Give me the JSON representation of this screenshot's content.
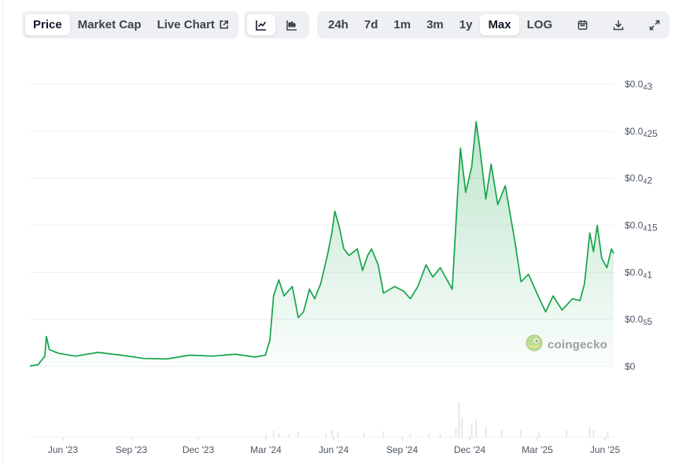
{
  "toolbar": {
    "view_tabs": [
      "Price",
      "Market Cap",
      "Live Chart"
    ],
    "active_view": "Price",
    "chart_modes": [
      "line-chart-icon",
      "candlestick-icon"
    ],
    "active_mode": "line-chart-icon",
    "ranges": [
      "24h",
      "7d",
      "1m",
      "3m",
      "1y",
      "Max",
      "LOG"
    ],
    "active_range": "Max",
    "tools": [
      "calendar-icon",
      "download-icon",
      "fullscreen-icon"
    ]
  },
  "watermark": {
    "text": "coingecko",
    "logo": "coingecko-gecko-logo"
  },
  "colors": {
    "line": "#16a34a",
    "fill_top": "#16a34a",
    "volume": "#e5e7eb",
    "grid": "#eef0f3",
    "active_tab_bg": "#ffffff",
    "toolbar_bg": "#eef0f3"
  },
  "chart_data": {
    "type": "area",
    "y_ticks": [
      {
        "value": 0,
        "label": "$0"
      },
      {
        "value": 5e-06,
        "label": "$0.0₅5"
      },
      {
        "value": 1e-05,
        "label": "$0.0₄1"
      },
      {
        "value": 1.5e-05,
        "label": "$0.0₄15"
      },
      {
        "value": 2e-05,
        "label": "$0.0₄2"
      },
      {
        "value": 2.5e-05,
        "label": "$0.0₄25"
      },
      {
        "value": 3e-05,
        "label": "$0.0₄3"
      }
    ],
    "ylim": [
      0,
      3e-05
    ],
    "x_ticks": [
      "Jun '23",
      "Sep '23",
      "Dec '23",
      "Mar '24",
      "Jun '24",
      "Sep '24",
      "Dec '24",
      "Mar '25",
      "Jun '25"
    ],
    "x_range": [
      "2023-04",
      "2025-06"
    ],
    "grid": true,
    "series": [
      {
        "values": [
          [
            "2023-04-20",
            5e-08
          ],
          [
            "2023-05-01",
            2e-07
          ],
          [
            "2023-05-10",
            1.1e-06
          ],
          [
            "2023-05-12",
            3.2e-06
          ],
          [
            "2023-05-16",
            1.8e-06
          ],
          [
            "2023-05-28",
            1.4e-06
          ],
          [
            "2023-06-20",
            1.1e-06
          ],
          [
            "2023-07-20",
            1.5e-06
          ],
          [
            "2023-08-20",
            1.2e-06
          ],
          [
            "2023-09-20",
            8.5e-07
          ],
          [
            "2023-10-20",
            8e-07
          ],
          [
            "2023-11-20",
            1.2e-06
          ],
          [
            "2023-12-20",
            1.1e-06
          ],
          [
            "2024-01-20",
            1.3e-06
          ],
          [
            "2024-02-15",
            1e-06
          ],
          [
            "2024-02-29",
            1.2e-06
          ],
          [
            "2024-03-06",
            2.8e-06
          ],
          [
            "2024-03-11",
            7.5e-06
          ],
          [
            "2024-03-18",
            9.2e-06
          ],
          [
            "2024-03-25",
            7.5e-06
          ],
          [
            "2024-04-05",
            8.5e-06
          ],
          [
            "2024-04-13",
            5.2e-06
          ],
          [
            "2024-04-20",
            5.8e-06
          ],
          [
            "2024-04-28",
            8.2e-06
          ],
          [
            "2024-05-05",
            7.2e-06
          ],
          [
            "2024-05-13",
            8.8e-06
          ],
          [
            "2024-05-22",
            1.18e-05
          ],
          [
            "2024-05-28",
            1.42e-05
          ],
          [
            "2024-06-01",
            1.65e-05
          ],
          [
            "2024-06-07",
            1.48e-05
          ],
          [
            "2024-06-13",
            1.25e-05
          ],
          [
            "2024-06-20",
            1.18e-05
          ],
          [
            "2024-07-01",
            1.25e-05
          ],
          [
            "2024-07-08",
            1.02e-05
          ],
          [
            "2024-07-15",
            1.18e-05
          ],
          [
            "2024-07-20",
            1.25e-05
          ],
          [
            "2024-07-29",
            1.08e-05
          ],
          [
            "2024-08-05",
            7.8e-06
          ],
          [
            "2024-08-20",
            8.5e-06
          ],
          [
            "2024-09-01",
            8e-06
          ],
          [
            "2024-09-10",
            7.2e-06
          ],
          [
            "2024-09-20",
            8.5e-06
          ],
          [
            "2024-10-01",
            1.08e-05
          ],
          [
            "2024-10-10",
            9.5e-06
          ],
          [
            "2024-10-20",
            1.05e-05
          ],
          [
            "2024-11-05",
            8.2e-06
          ],
          [
            "2024-11-12",
            1.8e-05
          ],
          [
            "2024-11-16",
            2.32e-05
          ],
          [
            "2024-11-23",
            1.85e-05
          ],
          [
            "2024-12-01",
            2.12e-05
          ],
          [
            "2024-12-07",
            2.6e-05
          ],
          [
            "2024-12-12",
            2.32e-05
          ],
          [
            "2024-12-20",
            1.78e-05
          ],
          [
            "2024-12-27",
            2.15e-05
          ],
          [
            "2025-01-05",
            1.72e-05
          ],
          [
            "2025-01-15",
            1.92e-05
          ],
          [
            "2025-01-28",
            1.32e-05
          ],
          [
            "2025-02-05",
            9e-06
          ],
          [
            "2025-02-15",
            9.8e-06
          ],
          [
            "2025-02-28",
            7.5e-06
          ],
          [
            "2025-03-10",
            5.8e-06
          ],
          [
            "2025-03-20",
            7.5e-06
          ],
          [
            "2025-04-01",
            6e-06
          ],
          [
            "2025-04-15",
            7.2e-06
          ],
          [
            "2025-04-25",
            7e-06
          ],
          [
            "2025-05-01",
            8.8e-06
          ],
          [
            "2025-05-08",
            1.42e-05
          ],
          [
            "2025-05-13",
            1.22e-05
          ],
          [
            "2025-05-18",
            1.5e-05
          ],
          [
            "2025-05-24",
            1.15e-05
          ],
          [
            "2025-05-31",
            1.05e-05
          ],
          [
            "2025-06-06",
            1.25e-05
          ],
          [
            "2025-06-09",
            1.2e-05
          ]
        ]
      }
    ],
    "volume": [
      [
        "2024-03-01",
        0.08
      ],
      [
        "2024-03-11",
        0.18
      ],
      [
        "2024-03-18",
        0.12
      ],
      [
        "2024-04-01",
        0.1
      ],
      [
        "2024-04-13",
        0.14
      ],
      [
        "2024-05-20",
        0.1
      ],
      [
        "2024-05-28",
        0.2
      ],
      [
        "2024-06-05",
        0.14
      ],
      [
        "2024-07-10",
        0.12
      ],
      [
        "2024-08-05",
        0.16
      ],
      [
        "2024-09-10",
        0.1
      ],
      [
        "2024-10-05",
        0.12
      ],
      [
        "2024-10-20",
        0.1
      ],
      [
        "2024-11-10",
        0.3
      ],
      [
        "2024-11-14",
        1.0
      ],
      [
        "2024-11-18",
        0.55
      ],
      [
        "2024-12-01",
        0.35
      ],
      [
        "2024-12-07",
        0.5
      ],
      [
        "2024-12-20",
        0.3
      ],
      [
        "2025-01-10",
        0.2
      ],
      [
        "2025-02-05",
        0.22
      ],
      [
        "2025-03-01",
        0.15
      ],
      [
        "2025-04-07",
        0.18
      ],
      [
        "2025-05-08",
        0.3
      ],
      [
        "2025-05-13",
        0.2
      ],
      [
        "2025-06-01",
        0.15
      ]
    ]
  }
}
